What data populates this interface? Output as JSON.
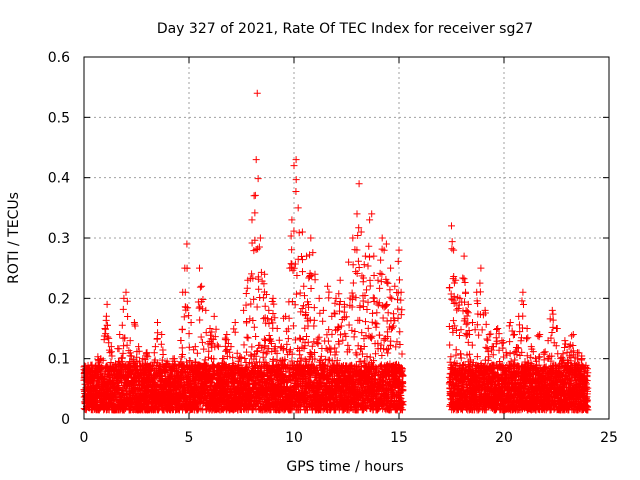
{
  "chart_data": {
    "type": "scatter",
    "title": "Day 327 of 2021, Rate Of TEC Index for receiver sg27",
    "xlabel": "GPS time / hours",
    "ylabel": "ROTI / TECUs",
    "xlim": [
      0,
      25
    ],
    "ylim": [
      0,
      0.6
    ],
    "xticks": [
      0,
      5,
      10,
      15,
      20,
      25
    ],
    "yticks": [
      0,
      0.1,
      0.2,
      0.3,
      0.4,
      0.5,
      0.6
    ],
    "xtick_labels": [
      "0",
      "5",
      "10",
      "15",
      "20",
      "25"
    ],
    "ytick_labels": [
      "0",
      "0.1",
      "0.2",
      "0.3",
      "0.4",
      "0.5",
      "0.6"
    ],
    "grid": true,
    "marker": "+",
    "color": "#ff0000",
    "data_gap_hours": [
      15.2,
      17.4
    ],
    "series": [
      {
        "name": "ROTI",
        "points": [
          [
            0.1,
            0.08
          ],
          [
            0.3,
            0.06
          ],
          [
            0.5,
            0.07
          ],
          [
            0.8,
            0.1
          ],
          [
            1.0,
            0.15
          ],
          [
            1.1,
            0.19
          ],
          [
            1.3,
            0.12
          ],
          [
            1.5,
            0.09
          ],
          [
            1.7,
            0.14
          ],
          [
            1.9,
            0.2
          ],
          [
            2.0,
            0.21
          ],
          [
            2.2,
            0.13
          ],
          [
            2.4,
            0.16
          ],
          [
            2.6,
            0.12
          ],
          [
            2.8,
            0.1
          ],
          [
            3.0,
            0.11
          ],
          [
            3.2,
            0.08
          ],
          [
            3.4,
            0.12
          ],
          [
            3.5,
            0.16
          ],
          [
            3.7,
            0.14
          ],
          [
            3.9,
            0.09
          ],
          [
            4.1,
            0.08
          ],
          [
            4.3,
            0.1
          ],
          [
            4.5,
            0.07
          ],
          [
            4.7,
            0.21
          ],
          [
            4.8,
            0.25
          ],
          [
            4.9,
            0.29
          ],
          [
            5.1,
            0.16
          ],
          [
            5.3,
            0.12
          ],
          [
            5.5,
            0.25
          ],
          [
            5.6,
            0.22
          ],
          [
            5.8,
            0.18
          ],
          [
            6.0,
            0.15
          ],
          [
            6.2,
            0.17
          ],
          [
            6.4,
            0.12
          ],
          [
            6.6,
            0.1
          ],
          [
            6.8,
            0.14
          ],
          [
            7.0,
            0.12
          ],
          [
            7.2,
            0.16
          ],
          [
            7.4,
            0.1
          ],
          [
            7.6,
            0.18
          ],
          [
            7.8,
            0.23
          ],
          [
            8.0,
            0.33
          ],
          [
            8.1,
            0.37
          ],
          [
            8.2,
            0.43
          ],
          [
            8.25,
            0.54
          ],
          [
            8.4,
            0.3
          ],
          [
            8.6,
            0.24
          ],
          [
            8.8,
            0.18
          ],
          [
            9.0,
            0.2
          ],
          [
            9.2,
            0.15
          ],
          [
            9.4,
            0.12
          ],
          [
            9.6,
            0.17
          ],
          [
            9.8,
            0.25
          ],
          [
            9.9,
            0.33
          ],
          [
            10.0,
            0.42
          ],
          [
            10.1,
            0.43
          ],
          [
            10.2,
            0.35
          ],
          [
            10.4,
            0.31
          ],
          [
            10.6,
            0.27
          ],
          [
            10.8,
            0.3
          ],
          [
            11.0,
            0.24
          ],
          [
            11.2,
            0.2
          ],
          [
            11.4,
            0.18
          ],
          [
            11.6,
            0.22
          ],
          [
            11.8,
            0.17
          ],
          [
            12.0,
            0.2
          ],
          [
            12.2,
            0.23
          ],
          [
            12.4,
            0.19
          ],
          [
            12.6,
            0.26
          ],
          [
            12.8,
            0.3
          ],
          [
            13.0,
            0.34
          ],
          [
            13.1,
            0.39
          ],
          [
            13.2,
            0.31
          ],
          [
            13.4,
            0.27
          ],
          [
            13.6,
            0.33
          ],
          [
            13.7,
            0.34
          ],
          [
            13.8,
            0.27
          ],
          [
            14.0,
            0.23
          ],
          [
            14.2,
            0.3
          ],
          [
            14.4,
            0.29
          ],
          [
            14.6,
            0.25
          ],
          [
            14.8,
            0.22
          ],
          [
            15.0,
            0.28
          ],
          [
            15.1,
            0.21
          ],
          [
            17.5,
            0.32
          ],
          [
            17.6,
            0.28
          ],
          [
            17.7,
            0.23
          ],
          [
            17.9,
            0.2
          ],
          [
            18.1,
            0.27
          ],
          [
            18.3,
            0.19
          ],
          [
            18.5,
            0.16
          ],
          [
            18.7,
            0.21
          ],
          [
            18.9,
            0.25
          ],
          [
            19.1,
            0.18
          ],
          [
            19.3,
            0.14
          ],
          [
            19.5,
            0.12
          ],
          [
            19.7,
            0.15
          ],
          [
            19.9,
            0.13
          ],
          [
            20.1,
            0.11
          ],
          [
            20.3,
            0.16
          ],
          [
            20.5,
            0.14
          ],
          [
            20.7,
            0.17
          ],
          [
            20.9,
            0.21
          ],
          [
            21.1,
            0.15
          ],
          [
            21.3,
            0.12
          ],
          [
            21.5,
            0.1
          ],
          [
            21.7,
            0.14
          ],
          [
            21.9,
            0.11
          ],
          [
            22.1,
            0.13
          ],
          [
            22.3,
            0.18
          ],
          [
            22.5,
            0.15
          ],
          [
            22.7,
            0.1
          ],
          [
            22.9,
            0.13
          ],
          [
            23.1,
            0.12
          ],
          [
            23.3,
            0.14
          ],
          [
            23.5,
            0.11
          ],
          [
            23.7,
            0.1
          ],
          [
            23.9,
            0.08
          ]
        ]
      }
    ]
  }
}
